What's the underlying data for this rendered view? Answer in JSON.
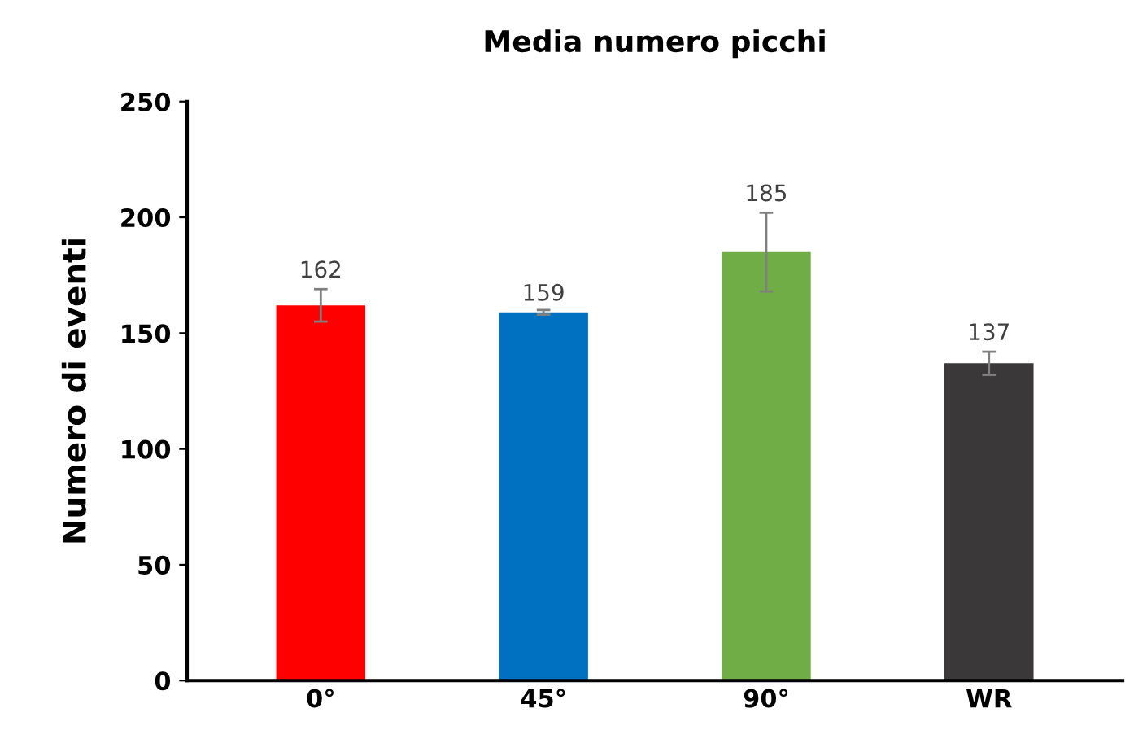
{
  "chart_data": {
    "type": "bar",
    "title": "Media numero picchi",
    "ylabel": "Numero di eventi",
    "categories": [
      "0°",
      "45°",
      "90°",
      "WR"
    ],
    "values": [
      162,
      159,
      185,
      137
    ],
    "colors": [
      "#ff0000",
      "#0070c0",
      "#70ad47",
      "#3a3838"
    ],
    "errors": [
      7,
      1,
      17,
      5
    ],
    "data_labels": true,
    "ylim": [
      0,
      250
    ],
    "yticks": [
      0,
      50,
      100,
      150,
      200,
      250
    ],
    "grid": false,
    "legend": false
  }
}
